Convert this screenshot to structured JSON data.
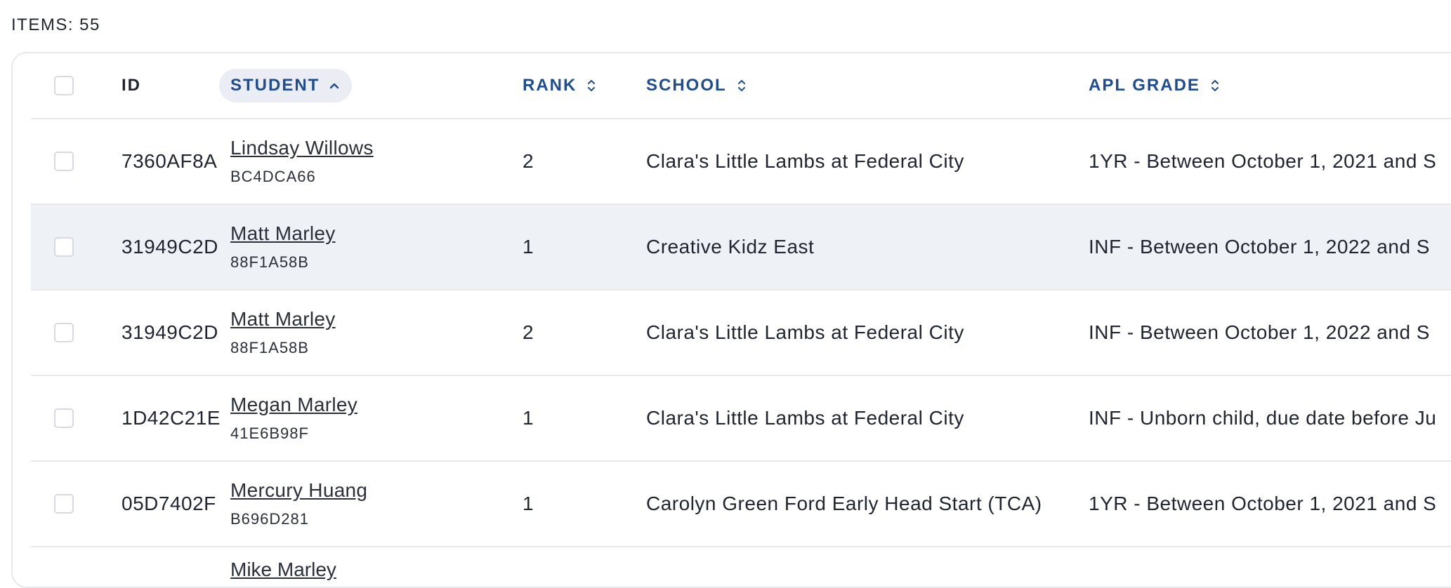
{
  "items_label": "ITEMS: 55",
  "columns": {
    "id": "ID",
    "student": "STUDENT",
    "rank": "RANK",
    "school": "SCHOOL",
    "grade": "APL GRADE"
  },
  "rows": [
    {
      "id": "7360AF8A",
      "student": "Lindsay Willows",
      "student_code": "BC4DCA66",
      "rank": "2",
      "school": "Clara's Little Lambs at Federal City",
      "grade": "1YR - Between October 1, 2021 and S"
    },
    {
      "id": "31949C2D",
      "student": "Matt Marley",
      "student_code": "88F1A58B",
      "rank": "1",
      "school": "Creative Kidz East",
      "grade": "INF - Between October 1, 2022 and S"
    },
    {
      "id": "31949C2D",
      "student": "Matt Marley",
      "student_code": "88F1A58B",
      "rank": "2",
      "school": "Clara's Little Lambs at Federal City",
      "grade": "INF - Between October 1, 2022 and S"
    },
    {
      "id": "1D42C21E",
      "student": "Megan Marley",
      "student_code": "41E6B98F",
      "rank": "1",
      "school": "Clara's Little Lambs at Federal City",
      "grade": "INF - Unborn child, due date before Ju"
    },
    {
      "id": "05D7402F",
      "student": "Mercury Huang",
      "student_code": "B696D281",
      "rank": "1",
      "school": "Carolyn Green Ford Early Head Start (TCA)",
      "grade": "1YR - Between October 1, 2021 and S"
    }
  ],
  "partial_row": {
    "student": "Mike Marley"
  }
}
